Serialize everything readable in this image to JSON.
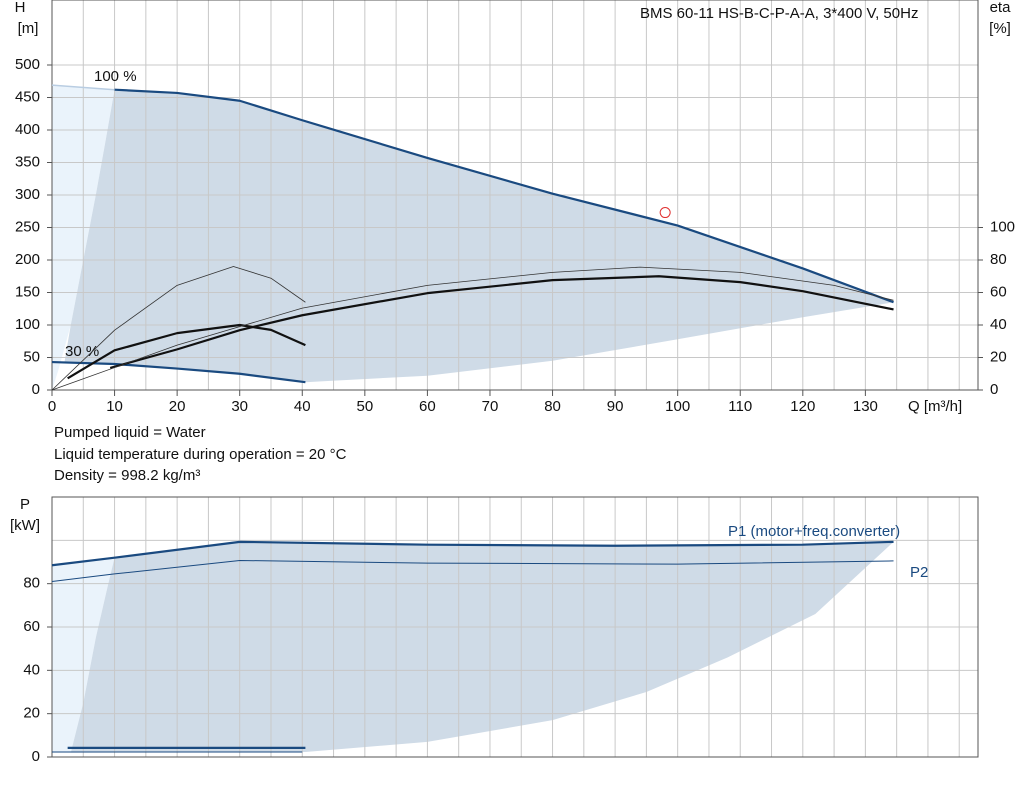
{
  "liquid_info": [
    "Pumped liquid = Water",
    "Liquid temperature during operation = 20 °C",
    "Density = 998.2 kg/m³"
  ],
  "chart_data": [
    {
      "type": "line",
      "title": "BMS 60-11 HS-B-C-P-A-A, 3*400 V, 50Hz",
      "ylabel": "H",
      "yunit": "[m]",
      "y2label": "eta",
      "y2unit": "[%]",
      "xlabel": "Q [m³/h]",
      "xlim": [
        0,
        148
      ],
      "xticks": [
        0,
        10,
        20,
        30,
        40,
        50,
        60,
        70,
        80,
        90,
        100,
        110,
        120,
        130
      ],
      "xgrid": [
        5,
        10,
        15,
        20,
        25,
        30,
        35,
        40,
        45,
        50,
        55,
        60,
        65,
        70,
        75,
        80,
        85,
        90,
        95,
        100,
        105,
        110,
        115,
        120,
        125,
        130,
        135,
        140,
        145
      ],
      "ylim": [
        0,
        600
      ],
      "yticks": [
        0,
        50,
        100,
        150,
        200,
        250,
        300,
        350,
        400,
        450,
        500
      ],
      "y2lim": [
        0,
        240
      ],
      "y2ticks": [
        0,
        20,
        40,
        60,
        80,
        100
      ],
      "annotations": [
        "100 %",
        "30 %"
      ],
      "regions": [
        {
          "color": "#eaf3fb",
          "x": [
            0,
            10,
            8.5,
            7,
            5,
            3,
            1,
            0
          ],
          "values": [
            469,
            462,
            380,
            300,
            200,
            100,
            30,
            0
          ]
        },
        {
          "color": "#cfdbe7",
          "x": [
            10,
            20,
            30,
            40,
            60,
            80,
            100,
            120,
            134.5,
            120,
            100,
            80,
            60,
            40.5,
            30,
            20,
            10,
            2,
            3,
            5,
            7,
            8.5
          ],
          "values": [
            462,
            457,
            445,
            415,
            357,
            302,
            253,
            187,
            135,
            112,
            78,
            45,
            22,
            12,
            25,
            33,
            40,
            43,
            100,
            200,
            300,
            380
          ]
        }
      ],
      "series": [
        {
          "color": "#b9cde2",
          "width": 1.5,
          "x": [
            0,
            10
          ],
          "values": [
            469,
            462
          ]
        },
        {
          "color": "#1a4a80",
          "width": 2.2,
          "x": [
            10,
            20,
            30,
            40,
            60,
            80,
            100,
            120,
            134.5
          ],
          "values": [
            462,
            457,
            445,
            415,
            357,
            302,
            253,
            187,
            135
          ]
        },
        {
          "color": "#1a4a80",
          "width": 2.2,
          "x": [
            0,
            10,
            20,
            30,
            40.5
          ],
          "values": [
            43,
            40,
            33,
            25,
            12
          ]
        },
        {
          "color": "#111111",
          "width": 2.2,
          "axis": "y2",
          "x": [
            2.5,
            10,
            20,
            30,
            35,
            40.5
          ],
          "values": [
            7.2,
            24.4,
            35,
            40,
            37,
            27.6
          ]
        },
        {
          "color": "#111111",
          "width": 2.2,
          "axis": "y2",
          "x": [
            9.3,
            20,
            30,
            40,
            60,
            80,
            97,
            110,
            120,
            134.5
          ],
          "values": [
            13.6,
            25,
            36.8,
            46,
            59.6,
            67.6,
            70,
            66.4,
            60.8,
            49.6
          ]
        },
        {
          "color": "#333333",
          "width": 0.8,
          "axis": "y2",
          "x": [
            0,
            10,
            20,
            29,
            35,
            40.5
          ],
          "values": [
            0,
            36.8,
            64.4,
            76,
            68.8,
            54
          ]
        },
        {
          "color": "#333333",
          "width": 0.8,
          "axis": "y2",
          "x": [
            0,
            20,
            40,
            60,
            80,
            94,
            110,
            125,
            134.5
          ],
          "values": [
            0,
            27.6,
            50.4,
            64.4,
            72.4,
            75.6,
            72.4,
            64.4,
            55.2
          ]
        }
      ],
      "points": [
        {
          "x": 98,
          "y": 273,
          "color": "#e03030"
        }
      ]
    },
    {
      "type": "line",
      "ylabel": "P",
      "yunit": "[kW]",
      "xlim": [
        0,
        148
      ],
      "xgrid": [
        5,
        10,
        15,
        20,
        25,
        30,
        35,
        40,
        45,
        50,
        55,
        60,
        65,
        70,
        75,
        80,
        85,
        90,
        95,
        100,
        105,
        110,
        115,
        120,
        125,
        130,
        135,
        140,
        145
      ],
      "ylim": [
        0,
        120
      ],
      "yticks": [
        0,
        20,
        40,
        60,
        80
      ],
      "ygrid": [
        20,
        40,
        60,
        80,
        100
      ],
      "regions": [
        {
          "color": "#eaf3fb",
          "x": [
            0,
            10,
            9,
            7,
            5,
            3,
            0
          ],
          "values": [
            88.5,
            92,
            80,
            55,
            25,
            2,
            2
          ]
        },
        {
          "color": "#cfdbe7",
          "x": [
            10,
            30,
            60,
            90,
            120,
            134.5,
            122,
            108,
            95,
            80,
            60,
            40.5,
            3,
            5,
            7,
            9
          ],
          "values": [
            92,
            99.3,
            98,
            97.5,
            98,
            99.3,
            66,
            46,
            30,
            17,
            7,
            2.3,
            2,
            25,
            55,
            80
          ]
        }
      ],
      "series": [
        {
          "name": "P1 (motor+freq.converter)",
          "color": "#1a4a80",
          "width": 2.2,
          "x": [
            0,
            10,
            30,
            60,
            90,
            120,
            134.5
          ],
          "values": [
            88.5,
            92,
            99.3,
            98,
            97.5,
            98,
            99.3
          ]
        },
        {
          "name": "P2",
          "color": "#1a4a80",
          "width": 1,
          "x": [
            0,
            10,
            30,
            60,
            100,
            134.5
          ],
          "values": [
            81,
            84.5,
            90.7,
            89.5,
            89,
            90.5
          ]
        },
        {
          "color": "#1a4a80",
          "width": 2.2,
          "x": [
            2.5,
            40.5
          ],
          "values": [
            4.2,
            4.2
          ]
        },
        {
          "color": "#1a4a80",
          "width": 1,
          "x": [
            0,
            40
          ],
          "values": [
            2.3,
            2.3
          ]
        }
      ]
    }
  ]
}
